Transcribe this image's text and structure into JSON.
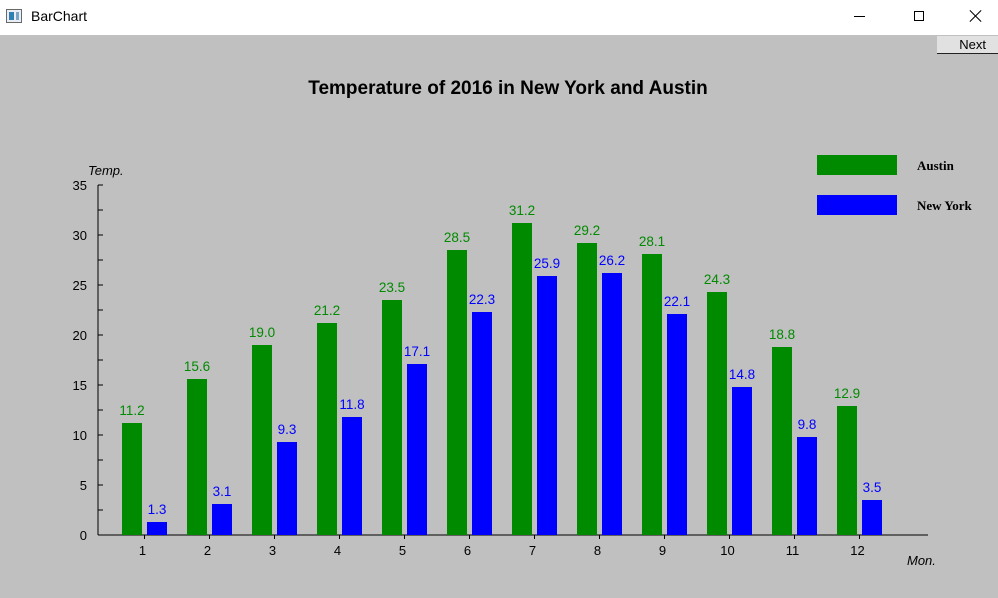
{
  "window": {
    "title": "BarChart",
    "controls": {
      "minimize": "minimize-icon",
      "maximize": "maximize-icon",
      "close": "close-icon"
    }
  },
  "toolbar": {
    "next_label": "Next"
  },
  "colors": {
    "austin": "#008a00",
    "new_york": "#0000ff",
    "background": "#c0c0c0"
  },
  "chart_data": {
    "type": "bar",
    "title": "Temperature of 2016 in New York and Austin",
    "xlabel": "Mon.",
    "ylabel": "Temp.",
    "categories": [
      "1",
      "2",
      "3",
      "4",
      "5",
      "6",
      "7",
      "8",
      "9",
      "10",
      "11",
      "12"
    ],
    "ylim": [
      0,
      35
    ],
    "yticks": [
      0,
      5,
      10,
      15,
      20,
      25,
      30,
      35
    ],
    "grid": false,
    "legend": "top-right",
    "series": [
      {
        "name": "Austin",
        "color": "#008a00",
        "values": [
          11.2,
          15.6,
          19.0,
          21.2,
          23.5,
          28.5,
          31.2,
          29.2,
          28.1,
          24.3,
          18.8,
          12.9
        ]
      },
      {
        "name": "New York",
        "color": "#0000ff",
        "values": [
          1.3,
          3.1,
          9.3,
          11.8,
          17.1,
          22.3,
          25.9,
          26.2,
          22.1,
          14.8,
          9.8,
          3.5
        ]
      }
    ]
  }
}
